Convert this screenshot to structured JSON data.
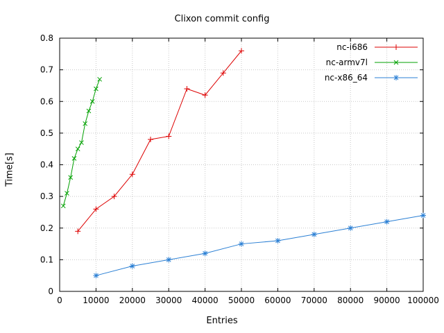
{
  "chart_data": {
    "type": "line",
    "title": "Clixon commit config",
    "xlabel": "Entries",
    "ylabel": "Time[s]",
    "xlim": [
      0,
      100000
    ],
    "ylim": [
      0,
      0.8
    ],
    "xticks": [
      0,
      10000,
      20000,
      30000,
      40000,
      50000,
      60000,
      70000,
      80000,
      90000,
      100000
    ],
    "yticks": [
      0,
      0.1,
      0.2,
      0.3,
      0.4,
      0.5,
      0.6,
      0.7,
      0.8
    ],
    "grid": true,
    "legend_position": "top-right",
    "colors": {
      "axis": "#000000",
      "grid": "#c8c8c8",
      "text": "#000000"
    },
    "series": [
      {
        "name": "nc-i686",
        "color": "#dd0000",
        "marker": "plus",
        "x": [
          5000,
          10000,
          15000,
          20000,
          25000,
          30000,
          35000,
          40000,
          45000,
          50000
        ],
        "y": [
          0.19,
          0.26,
          0.3,
          0.37,
          0.48,
          0.49,
          0.64,
          0.62,
          0.69,
          0.76
        ]
      },
      {
        "name": "nc-armv7l",
        "color": "#00a000",
        "marker": "cross",
        "x": [
          1000,
          2000,
          3000,
          4000,
          5000,
          6000,
          7000,
          8000,
          9000,
          10000,
          11000
        ],
        "y": [
          0.27,
          0.31,
          0.36,
          0.42,
          0.45,
          0.47,
          0.53,
          0.57,
          0.6,
          0.64,
          0.67
        ]
      },
      {
        "name": "nc-x86_64",
        "color": "#2a7fd4",
        "marker": "asterisk",
        "x": [
          10000,
          20000,
          30000,
          40000,
          50000,
          60000,
          70000,
          80000,
          90000,
          100000
        ],
        "y": [
          0.05,
          0.08,
          0.1,
          0.12,
          0.15,
          0.16,
          0.18,
          0.2,
          0.22,
          0.24
        ]
      }
    ]
  }
}
